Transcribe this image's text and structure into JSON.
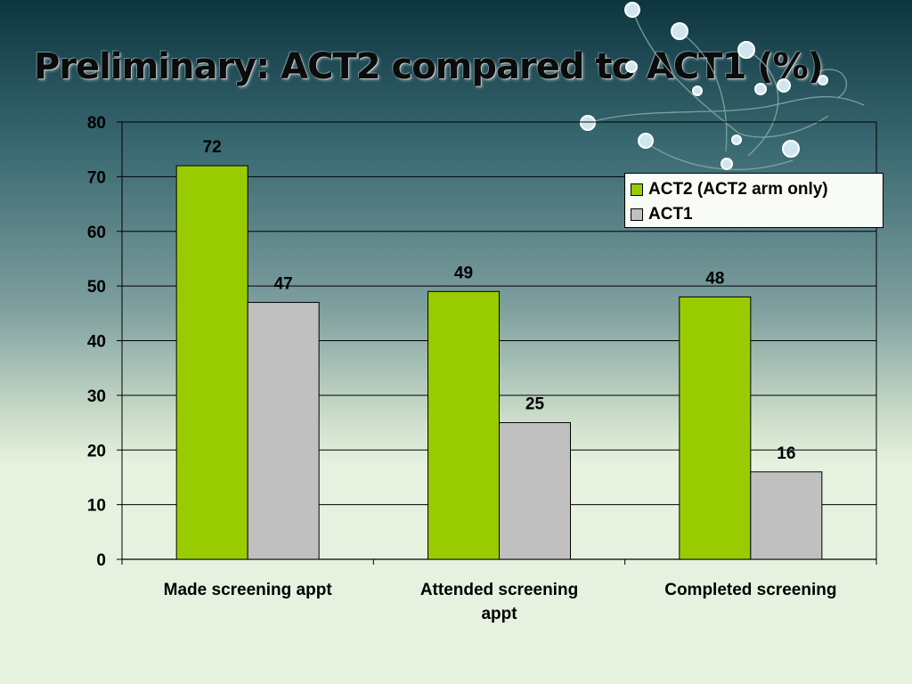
{
  "slide": {
    "title": "Preliminary: ACT2 compared to ACT1 (%)"
  },
  "colors": {
    "act2": "#99cc00",
    "act1": "#c0c0c0",
    "gridline": "#000000"
  },
  "chart_data": {
    "type": "bar",
    "categories": [
      [
        "Made screening appt"
      ],
      [
        "Attended screening",
        "appt"
      ],
      [
        "Completed screening"
      ]
    ],
    "series": [
      {
        "name": "ACT2 (ACT2 arm only)",
        "values": [
          72,
          49,
          48
        ],
        "color": "#99cc00"
      },
      {
        "name": "ACT1",
        "values": [
          47,
          25,
          16
        ],
        "color": "#c0c0c0"
      }
    ],
    "ylim": [
      0,
      80
    ],
    "yticks": [
      0,
      10,
      20,
      30,
      40,
      50,
      60,
      70,
      80
    ],
    "grid": true,
    "legend_position": "top-right",
    "data_labels": true
  }
}
